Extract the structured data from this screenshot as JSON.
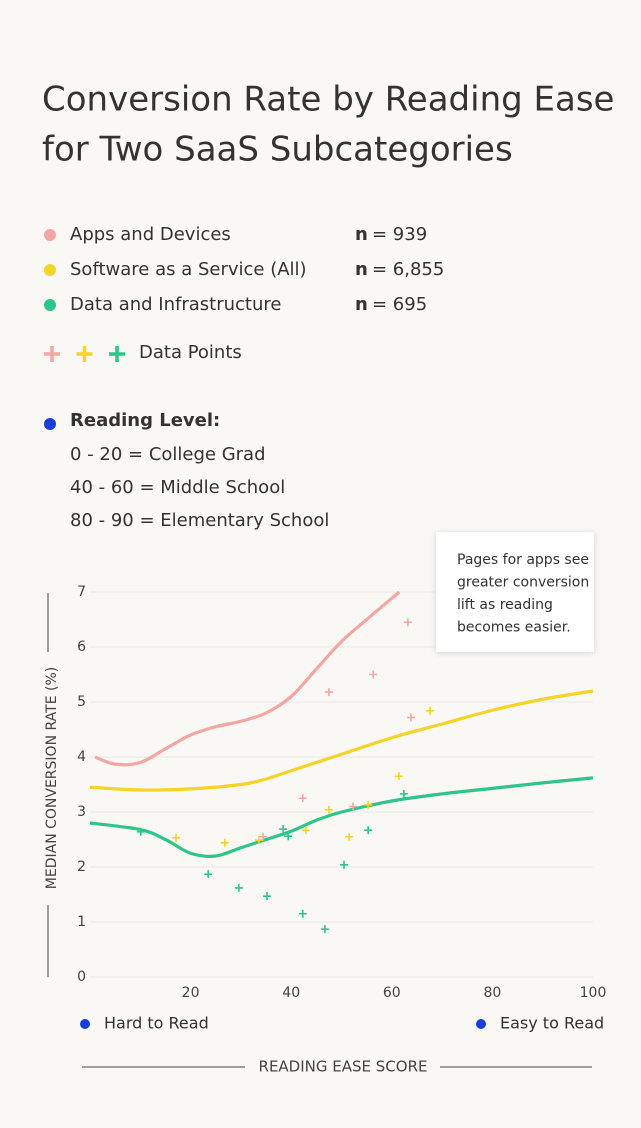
{
  "chart_data": {
    "type": "line",
    "title_lines": [
      "Conversion Rate by Reading Ease",
      "for Two SaaS Subcategories"
    ],
    "series": [
      {
        "name": "Apps and Devices",
        "color": "#f4a6a3",
        "n_symbol": "n",
        "n_text": "= 939",
        "x": [
          1,
          5,
          10,
          15,
          20,
          25,
          30,
          35,
          40,
          45,
          50,
          55,
          61.5
        ],
        "values": [
          4.0,
          3.87,
          3.9,
          4.15,
          4.4,
          4.55,
          4.65,
          4.8,
          5.1,
          5.6,
          6.1,
          6.5,
          7.0
        ],
        "points": {
          "x": [
            47.5,
            56.3,
            63.2,
            63.8,
            42.3,
            52.3,
            34.4
          ],
          "values": [
            5.18,
            5.5,
            6.45,
            4.72,
            3.25,
            3.1,
            2.55
          ]
        }
      },
      {
        "name": "Software as a Service (All)",
        "color": "#f5d327",
        "n_symbol": "n",
        "n_text": "= 6,855",
        "x": [
          0,
          10,
          20,
          30,
          35,
          40,
          50,
          60,
          70,
          80,
          90,
          100
        ],
        "values": [
          3.45,
          3.4,
          3.42,
          3.5,
          3.6,
          3.75,
          4.05,
          4.35,
          4.6,
          4.85,
          5.05,
          5.2
        ],
        "points": {
          "x": [
            17.1,
            26.8,
            33.6,
            42.9,
            47.5,
            51.5,
            55.3,
            61.4,
            67.6
          ],
          "values": [
            2.53,
            2.44,
            2.49,
            2.67,
            3.04,
            2.55,
            3.13,
            3.65,
            4.84
          ]
        }
      },
      {
        "name": "Data and Infrastructure",
        "color": "#2ec58a",
        "n_symbol": "n",
        "n_text": "= 695",
        "x": [
          0,
          10,
          15,
          20,
          25,
          30,
          35,
          40,
          45,
          50,
          60,
          70,
          80,
          90,
          100
        ],
        "values": [
          2.8,
          2.68,
          2.5,
          2.25,
          2.2,
          2.35,
          2.5,
          2.65,
          2.85,
          3.0,
          3.2,
          3.33,
          3.43,
          3.53,
          3.62
        ],
        "points": {
          "x": [
            10.1,
            23.5,
            29.6,
            35.2,
            38.4,
            39.4,
            42.3,
            46.7,
            50.5,
            55.3,
            62.4
          ],
          "values": [
            2.64,
            1.87,
            1.62,
            1.47,
            2.69,
            2.56,
            1.15,
            0.87,
            2.04,
            2.67,
            3.33
          ]
        }
      }
    ],
    "points_label": "Data Points",
    "reading_level": {
      "title": "Reading Level:",
      "lines": [
        "0 - 20 = College Grad",
        "40 - 60 = Middle School",
        "80 - 90 = Elementary School"
      ]
    },
    "annotation_lines": [
      "Pages for apps see",
      "greater conversion",
      "lift as reading",
      "becomes easier."
    ],
    "ylabel": "MEDIAN CONVERSION RATE (%)",
    "xlabel": "READING EASE SCORE",
    "x_low_label": "Hard to Read",
    "x_high_label": "Easy to Read",
    "xlim": [
      0,
      100
    ],
    "ylim": [
      0,
      7
    ],
    "xticks": [
      20,
      40,
      60,
      80,
      100
    ],
    "yticks": [
      0,
      1,
      2,
      3,
      4,
      5,
      6,
      7
    ],
    "grid": true,
    "accent_color": "#1a3fd9"
  }
}
